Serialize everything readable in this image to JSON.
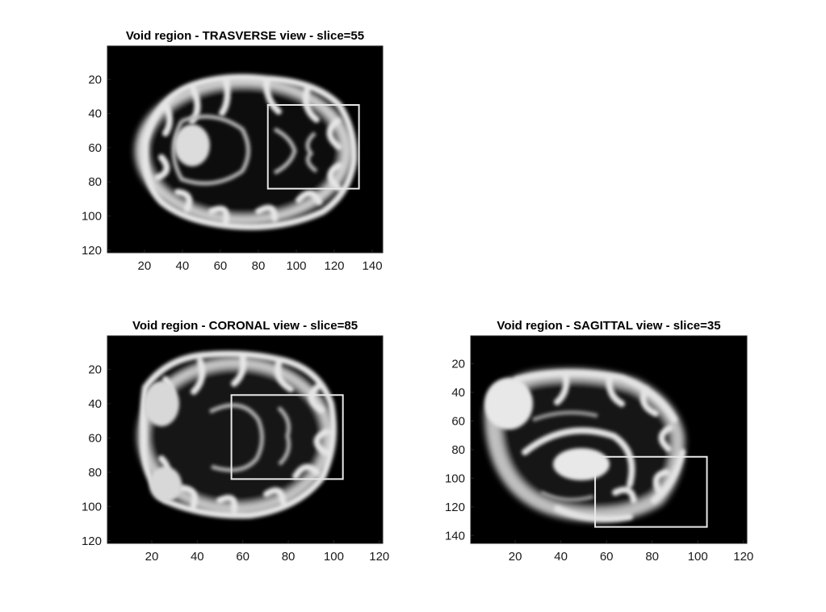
{
  "colors": {
    "background": "#000000",
    "tissue_light": "#ececec",
    "tissue_mid": "#9a9a9a",
    "roi_box": "#e8e8e8",
    "text": "#000000",
    "axis": "#262626"
  },
  "panels": [
    {
      "id": "transverse",
      "title": "Void region - TRASVERSE view - slice=55",
      "view": "transverse",
      "xlim": [
        0.5,
        145.5
      ],
      "ylim": [
        0.5,
        121.5
      ],
      "xticks": [
        20,
        40,
        60,
        80,
        100,
        120,
        140
      ],
      "yticks": [
        20,
        40,
        60,
        80,
        100,
        120
      ],
      "roi": {
        "x0": 85,
        "x1": 133,
        "y0": 35,
        "y1": 84
      }
    },
    {
      "id": "coronal",
      "title": "Void region - CORONAL view - slice=85",
      "view": "coronal",
      "xlim": [
        0.5,
        121.5
      ],
      "ylim": [
        0.5,
        121.5
      ],
      "xticks": [
        20,
        40,
        60,
        80,
        100,
        120
      ],
      "yticks": [
        20,
        40,
        60,
        80,
        100,
        120
      ],
      "roi": {
        "x0": 55,
        "x1": 104,
        "y0": 35,
        "y1": 84
      }
    },
    {
      "id": "sagittal",
      "title": "Void region - SAGITTAL view - slice=35",
      "view": "sagittal",
      "xlim": [
        0.5,
        121.5
      ],
      "ylim": [
        0.5,
        145.5
      ],
      "xticks": [
        20,
        40,
        60,
        80,
        100,
        120
      ],
      "yticks": [
        20,
        40,
        60,
        80,
        100,
        120,
        140
      ],
      "roi": {
        "x0": 55,
        "x1": 104,
        "y0": 85,
        "y1": 134
      }
    }
  ]
}
